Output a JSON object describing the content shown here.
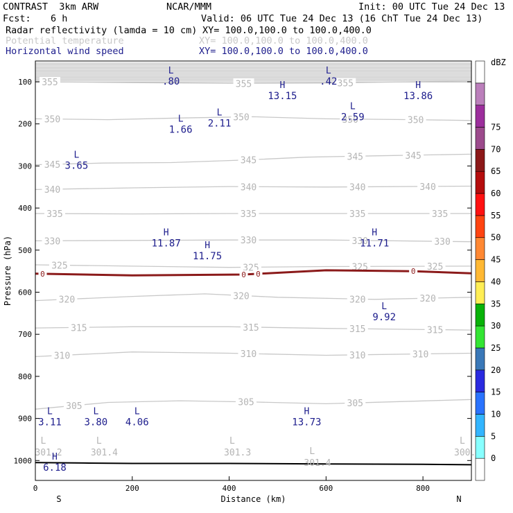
{
  "header": {
    "model": "CONTRAST  3km ARW",
    "center": "NCAR/MMM",
    "init": "Init: 00 UTC Tue 24 Dec 13",
    "fcst_label": "Fcst:",
    "fcst_value": "6 h",
    "valid": "Valid: 06 UTC Tue 24 Dec 13 (16 ChT Tue 24 Dec 13)",
    "fields": [
      {
        "name": "Radar reflectivity (lamda = 10 cm)",
        "xy": "XY= 100.0,100.0 to 100.0,400.0",
        "color": "#000000"
      },
      {
        "name": "Potential temperature",
        "xy": "XY= 100.0,100.0 to 100.0,400.0",
        "color": "#c8c8c8"
      },
      {
        "name": "Horizontal wind speed",
        "xy": "XY= 100.0,100.0 to 100.0,400.0",
        "color": "#1c1c8c"
      }
    ]
  },
  "chart_data": {
    "type": "cross-section",
    "xlabel": "Distance (km)",
    "ylabel": "Pressure (hPa)",
    "xlim": [
      0,
      900
    ],
    "ylim": [
      1050,
      60
    ],
    "x_ticks": [
      "0",
      "200",
      "400",
      "600",
      "800"
    ],
    "y_ticks": [
      "100",
      "200",
      "300",
      "400",
      "500",
      "600",
      "700",
      "800",
      "900",
      "1000"
    ],
    "x_end_labels": {
      "left": "S",
      "right": "N"
    },
    "theta_contours": [
      {
        "label": "355",
        "points": [
          [
            0,
            100
          ],
          [
            200,
            102
          ],
          [
            400,
            104
          ],
          [
            600,
            103
          ],
          [
            900,
            98
          ]
        ],
        "label_x": [
          30,
          430,
          640
        ]
      },
      {
        "label": "350",
        "points": [
          [
            0,
            188
          ],
          [
            150,
            190
          ],
          [
            300,
            186
          ],
          [
            450,
            183
          ],
          [
            600,
            188
          ],
          [
            780,
            190
          ],
          [
            900,
            192
          ]
        ],
        "label_x": [
          35,
          425,
          650,
          785
        ]
      },
      {
        "label": "345",
        "points": [
          [
            0,
            297
          ],
          [
            140,
            293
          ],
          [
            280,
            292
          ],
          [
            430,
            286
          ],
          [
            560,
            279
          ],
          [
            700,
            276
          ],
          [
            900,
            272
          ]
        ],
        "label_x": [
          35,
          440,
          660,
          780
        ]
      },
      {
        "label": "340",
        "points": [
          [
            0,
            356
          ],
          [
            200,
            352
          ],
          [
            400,
            349
          ],
          [
            600,
            350
          ],
          [
            900,
            348
          ]
        ],
        "label_x": [
          35,
          440,
          665,
          810
        ]
      },
      {
        "label": "335",
        "points": [
          [
            0,
            413
          ],
          [
            200,
            414
          ],
          [
            400,
            413
          ],
          [
            600,
            413
          ],
          [
            900,
            413
          ]
        ],
        "label_x": [
          40,
          440,
          665,
          835
        ]
      },
      {
        "label": "330",
        "points": [
          [
            0,
            478
          ],
          [
            200,
            477
          ],
          [
            400,
            476
          ],
          [
            600,
            476
          ],
          [
            900,
            480
          ]
        ],
        "label_x": [
          35,
          440,
          670,
          840
        ]
      },
      {
        "label": "325",
        "points": [
          [
            0,
            535
          ],
          [
            200,
            538
          ],
          [
            400,
            541
          ],
          [
            600,
            539
          ],
          [
            900,
            538
          ]
        ],
        "label_x": [
          50,
          445,
          670,
          825
        ]
      },
      {
        "label": "320",
        "points": [
          [
            0,
            620
          ],
          [
            200,
            610
          ],
          [
            350,
            604
          ],
          [
            500,
            612
          ],
          [
            700,
            617
          ],
          [
            900,
            612
          ]
        ],
        "label_x": [
          65,
          425,
          665,
          810
        ]
      },
      {
        "label": "315",
        "points": [
          [
            0,
            685
          ],
          [
            200,
            682
          ],
          [
            400,
            682
          ],
          [
            600,
            686
          ],
          [
            900,
            690
          ]
        ],
        "label_x": [
          90,
          445,
          665,
          825
        ]
      },
      {
        "label": "310",
        "points": [
          [
            0,
            753
          ],
          [
            200,
            742
          ],
          [
            400,
            745
          ],
          [
            600,
            750
          ],
          [
            900,
            745
          ]
        ],
        "label_x": [
          55,
          440,
          665,
          795
        ]
      },
      {
        "label": "305",
        "points": [
          [
            0,
            878
          ],
          [
            150,
            862
          ],
          [
            300,
            858
          ],
          [
            450,
            861
          ],
          [
            600,
            865
          ],
          [
            900,
            855
          ]
        ],
        "label_x": [
          80,
          435,
          660
        ]
      }
    ],
    "reflectivity_zero_contour": {
      "label": "0",
      "points": [
        [
          0,
          556
        ],
        [
          200,
          560
        ],
        [
          430,
          558
        ],
        [
          600,
          548
        ],
        [
          780,
          550
        ],
        [
          900,
          555
        ]
      ],
      "label_x": [
        15,
        430,
        460,
        780
      ]
    },
    "wind_extrema": [
      {
        "type": "L",
        "value": ".80",
        "x": 280,
        "p": 80
      },
      {
        "type": "L",
        "value": ".42",
        "x": 605,
        "p": 80
      },
      {
        "type": "H",
        "value": "13.15",
        "x": 510,
        "p": 115
      },
      {
        "type": "H",
        "value": "13.86",
        "x": 790,
        "p": 115
      },
      {
        "type": "L",
        "value": "2.11",
        "x": 380,
        "p": 180
      },
      {
        "type": "L",
        "value": "1.66",
        "x": 300,
        "p": 195
      },
      {
        "type": "L",
        "value": "2.59",
        "x": 655,
        "p": 165
      },
      {
        "type": "L",
        "value": "3.65",
        "x": 85,
        "p": 280
      },
      {
        "type": "H",
        "value": "11.87",
        "x": 270,
        "p": 465
      },
      {
        "type": "H",
        "value": "11.75",
        "x": 355,
        "p": 495
      },
      {
        "type": "H",
        "value": "11.71",
        "x": 700,
        "p": 465
      },
      {
        "type": "L",
        "value": "9.92",
        "x": 720,
        "p": 640
      },
      {
        "type": "L",
        "value": "3.11",
        "x": 30,
        "p": 890
      },
      {
        "type": "L",
        "value": "3.80",
        "x": 125,
        "p": 890
      },
      {
        "type": "L",
        "value": "4.06",
        "x": 210,
        "p": 890
      },
      {
        "type": "H",
        "value": "13.73",
        "x": 560,
        "p": 890
      },
      {
        "type": "H",
        "value": "6.18",
        "x": 40,
        "p": 998
      }
    ],
    "pt_extrema": [
      {
        "type": "L",
        "value": "301.2",
        "x": 5,
        "p": 960
      },
      {
        "type": "L",
        "value": "301.4",
        "x": 120,
        "p": 960
      },
      {
        "type": "L",
        "value": "301.3",
        "x": 395,
        "p": 960
      },
      {
        "type": "L",
        "value": "301.4",
        "x": 560,
        "p": 985
      },
      {
        "type": "L",
        "value": "300.",
        "x": 870,
        "p": 960
      }
    ],
    "terrain": [
      [
        0,
        1005
      ],
      [
        100,
        1006
      ],
      [
        200,
        1007
      ],
      [
        400,
        1007
      ],
      [
        600,
        1008
      ],
      [
        800,
        1009
      ],
      [
        900,
        1010
      ]
    ],
    "colorbar": {
      "unit": "dBZ",
      "labels": [
        "0",
        "5",
        "10",
        "15",
        "20",
        "25",
        "30",
        "35",
        "40",
        "45",
        "50",
        "55",
        "60",
        "65",
        "70",
        "75"
      ],
      "colors": [
        "#ffffff",
        "#88ffff",
        "#33b5ff",
        "#2a73ff",
        "#2a2ae0",
        "#3a78b8",
        "#33e533",
        "#08b208",
        "#ffee55",
        "#ffb833",
        "#ff8833",
        "#ff4411",
        "#ff1111",
        "#b50d0d",
        "#8c1818",
        "#9c4a8c",
        "#9c2e9c",
        "#bb7fbb",
        "#ffffff"
      ]
    }
  }
}
